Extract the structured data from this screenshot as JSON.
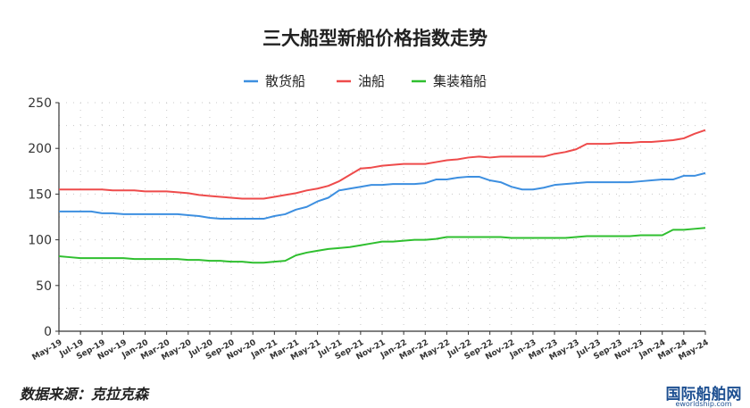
{
  "chart_data": {
    "type": "line",
    "title": "三大船型新船价格指数走势",
    "xlabel": "",
    "ylabel": "",
    "ylim": [
      0,
      250
    ],
    "yticks": [
      0,
      50,
      100,
      150,
      200,
      250
    ],
    "legend_position": "top-center",
    "grid": "dotted",
    "x": [
      "May-19",
      "Jun-19",
      "Jul-19",
      "Aug-19",
      "Sep-19",
      "Oct-19",
      "Nov-19",
      "Dec-19",
      "Jan-20",
      "Feb-20",
      "Mar-20",
      "Apr-20",
      "May-20",
      "Jun-20",
      "Jul-20",
      "Aug-20",
      "Sep-20",
      "Oct-20",
      "Nov-20",
      "Dec-20",
      "Jan-21",
      "Feb-21",
      "Mar-21",
      "Apr-21",
      "May-21",
      "Jun-21",
      "Jul-21",
      "Aug-21",
      "Sep-21",
      "Oct-21",
      "Nov-21",
      "Dec-21",
      "Jan-22",
      "Feb-22",
      "Mar-22",
      "Apr-22",
      "May-22",
      "Jun-22",
      "Jul-22",
      "Aug-22",
      "Sep-22",
      "Oct-22",
      "Nov-22",
      "Dec-22",
      "Jan-23",
      "Feb-23",
      "Mar-23",
      "Apr-23",
      "May-23",
      "Jun-23",
      "Jul-23",
      "Aug-23",
      "Sep-23",
      "Oct-23",
      "Nov-23",
      "Dec-23",
      "Jan-24",
      "Feb-24",
      "Mar-24",
      "Apr-24",
      "May-24"
    ],
    "xtick_labels": [
      "May-19",
      "Jul-19",
      "Sep-19",
      "Nov-19",
      "Jan-20",
      "Mar-20",
      "May-20",
      "Jul-20",
      "Sep-20",
      "Nov-20",
      "Jan-21",
      "Mar-21",
      "May-21",
      "Jul-21",
      "Sep-21",
      "Nov-21",
      "Jan-22",
      "Mar-22",
      "May-22",
      "Jul-22",
      "Sep-22",
      "Nov-22",
      "Jan-23",
      "Mar-23",
      "May-23",
      "Jul-23",
      "Sep-23",
      "Nov-23",
      "Jan-24",
      "Mar-24",
      "May-24"
    ],
    "series": [
      {
        "name": "散货船",
        "color": "#3d8fe0",
        "values": [
          131,
          131,
          131,
          131,
          129,
          129,
          128,
          128,
          128,
          128,
          128,
          128,
          127,
          126,
          124,
          123,
          123,
          123,
          123,
          123,
          126,
          128,
          133,
          136,
          142,
          146,
          154,
          156,
          158,
          160,
          160,
          161,
          161,
          161,
          162,
          166,
          166,
          168,
          169,
          169,
          165,
          163,
          158,
          155,
          155,
          157,
          160,
          161,
          162,
          163,
          163,
          163,
          163,
          163,
          164,
          165,
          166,
          166,
          170,
          170,
          173
        ]
      },
      {
        "name": "油船",
        "color": "#ee4b4b",
        "values": [
          155,
          155,
          155,
          155,
          155,
          154,
          154,
          154,
          153,
          153,
          153,
          152,
          151,
          149,
          148,
          147,
          146,
          145,
          145,
          145,
          147,
          149,
          151,
          154,
          156,
          159,
          164,
          171,
          178,
          179,
          181,
          182,
          183,
          183,
          183,
          185,
          187,
          188,
          190,
          191,
          190,
          191,
          191,
          191,
          191,
          191,
          194,
          196,
          199,
          205,
          205,
          205,
          206,
          206,
          207,
          207,
          208,
          209,
          211,
          216,
          220
        ]
      },
      {
        "name": "集装箱船",
        "color": "#2fbf2f",
        "values": [
          82,
          81,
          80,
          80,
          80,
          80,
          80,
          79,
          79,
          79,
          79,
          79,
          78,
          78,
          77,
          77,
          76,
          76,
          75,
          75,
          76,
          77,
          83,
          86,
          88,
          90,
          91,
          92,
          94,
          96,
          98,
          98,
          99,
          100,
          100,
          101,
          103,
          103,
          103,
          103,
          103,
          103,
          102,
          102,
          102,
          102,
          102,
          102,
          103,
          104,
          104,
          104,
          104,
          104,
          105,
          105,
          105,
          111,
          111,
          112,
          113
        ]
      }
    ]
  },
  "source_text": "数据来源：克拉克森",
  "watermark": {
    "name": "国际船舶网",
    "url": "eworldship.com"
  }
}
